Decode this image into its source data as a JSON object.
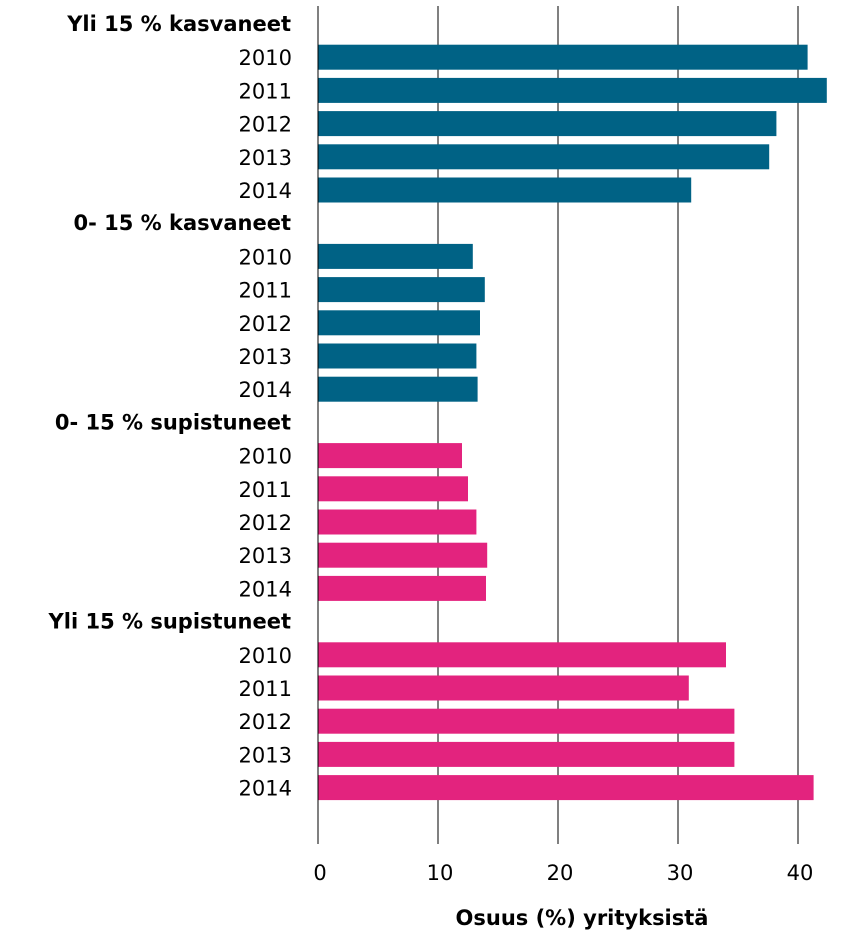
{
  "chart_data": {
    "type": "bar",
    "orientation": "horizontal",
    "xlabel": "Osuus (%) yrityksistä",
    "xlim": [
      0,
      43
    ],
    "xticks": [
      "0",
      "10",
      "20",
      "30",
      "40"
    ],
    "grid": "vertical",
    "legend": "none",
    "groups": [
      {
        "label": "Yli 15 % kasvaneet",
        "color": "#006285",
        "categories": [
          "2010",
          "2011",
          "2012",
          "2013",
          "2014"
        ],
        "values": [
          40.8,
          42.4,
          38.2,
          37.6,
          31.1
        ]
      },
      {
        "label": "0- 15 % kasvaneet",
        "color": "#006285",
        "categories": [
          "2010",
          "2011",
          "2012",
          "2013",
          "2014"
        ],
        "values": [
          12.9,
          13.9,
          13.5,
          13.2,
          13.3
        ]
      },
      {
        "label": "0- 15 % supistuneet",
        "color": "#e3237e",
        "categories": [
          "2010",
          "2011",
          "2012",
          "2013",
          "2014"
        ],
        "values": [
          12.0,
          12.5,
          13.2,
          14.1,
          14.0
        ]
      },
      {
        "label": "Yli 15 % supistuneet",
        "color": "#e3237e",
        "categories": [
          "2010",
          "2011",
          "2012",
          "2013",
          "2014"
        ],
        "values": [
          34.0,
          30.9,
          34.7,
          34.7,
          41.3
        ]
      }
    ]
  }
}
